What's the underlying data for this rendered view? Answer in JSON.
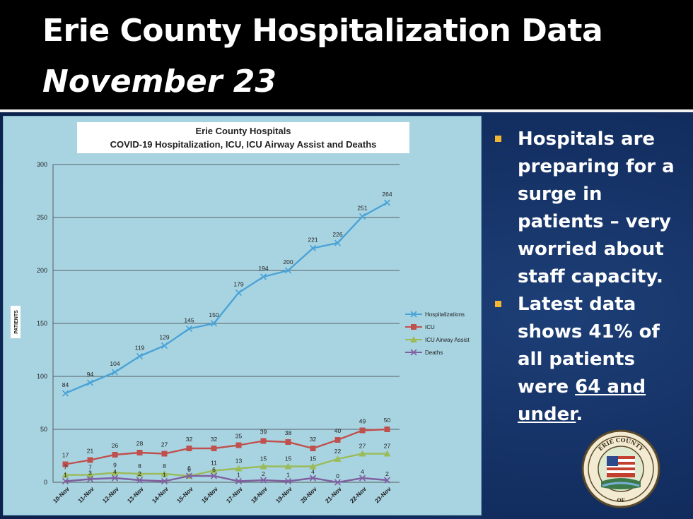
{
  "slide": {
    "title": "Erie County Hospitalization Data",
    "subtitle": "November 23"
  },
  "bullets": [
    {
      "text": "Hospitals are preparing for a surge in patients – very worried about staff capacity."
    },
    {
      "text_before": "Latest data shows 41% of all patients were ",
      "underlined": "64 and under",
      "text_after": "."
    }
  ],
  "seal": {
    "top_text": "ERIE COUNTY",
    "bottom_text": "OF"
  },
  "colors": {
    "hospitalizations": "#4aa3d6",
    "icu": "#c0504d",
    "icu_airway": "#9bbb59",
    "deaths": "#7f60a0",
    "bullet_marker": "#f2b632"
  },
  "chart_data": {
    "type": "line",
    "title": "Erie County Hospitals",
    "subtitle": "COVID-19 Hospitalization, ICU, ICU Airway Assist and Deaths",
    "ylabel": "PATIENTS",
    "xlabel": "",
    "ylim": [
      0,
      300
    ],
    "yticks": [
      0,
      50,
      100,
      150,
      200,
      250,
      300
    ],
    "grid": true,
    "legend_position": "right",
    "categories": [
      "10-Nov",
      "11-Nov",
      "12-Nov",
      "13-Nov",
      "14-Nov",
      "15-Nov",
      "16-Nov",
      "17-Nov",
      "18-Nov",
      "19-Nov",
      "20-Nov",
      "21-Nov",
      "22-Nov",
      "23-Nov"
    ],
    "series": [
      {
        "name": "Hospitalizations",
        "color": "#4aa3d6",
        "marker": "x",
        "values": [
          84,
          94,
          104,
          119,
          129,
          145,
          150,
          179,
          194,
          200,
          221,
          226,
          251,
          264
        ],
        "show_labels": true
      },
      {
        "name": "ICU",
        "color": "#c0504d",
        "marker": "square",
        "values": [
          17,
          21,
          26,
          28,
          27,
          32,
          32,
          35,
          39,
          38,
          32,
          40,
          49,
          50
        ],
        "show_labels": true
      },
      {
        "name": "ICU Airway Assist",
        "color": "#9bbb59",
        "marker": "triangle",
        "values": [
          7,
          7,
          9,
          8,
          8,
          6,
          11,
          13,
          15,
          15,
          15,
          22,
          27,
          27
        ],
        "show_labels": true
      },
      {
        "name": "Deaths",
        "color": "#7f60a0",
        "marker": "x",
        "values": [
          1,
          3,
          4,
          2,
          1,
          6,
          6,
          1,
          2,
          1,
          4,
          0,
          4,
          2
        ],
        "show_labels": true
      }
    ]
  }
}
